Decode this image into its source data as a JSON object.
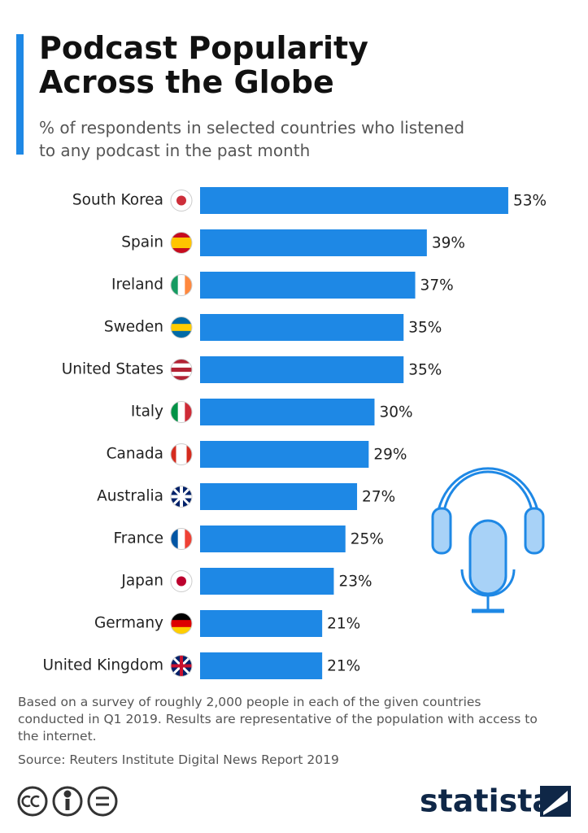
{
  "chart_data": {
    "type": "bar",
    "orientation": "horizontal",
    "title": "Podcast Popularity Across the Globe",
    "subtitle": "% of respondents in selected countries who listened to any podcast in the past month",
    "categories": [
      "South Korea",
      "Spain",
      "Ireland",
      "Sweden",
      "United States",
      "Italy",
      "Canada",
      "Australia",
      "France",
      "Japan",
      "Germany",
      "United Kingdom"
    ],
    "values": [
      53,
      39,
      37,
      35,
      35,
      30,
      29,
      27,
      25,
      23,
      21,
      21
    ],
    "value_labels": [
      "53%",
      "39%",
      "37%",
      "35%",
      "35%",
      "30%",
      "29%",
      "27%",
      "25%",
      "23%",
      "21%",
      "21%"
    ],
    "color": "#1e88e5"
  },
  "notes": "Based on a survey of roughly 2,000 people in each of the given countries conducted in Q1 2019. Results are representative of the population with access to the internet.",
  "source": "Source: Reuters Institute Digital News Report 2019",
  "logo": "statista"
}
